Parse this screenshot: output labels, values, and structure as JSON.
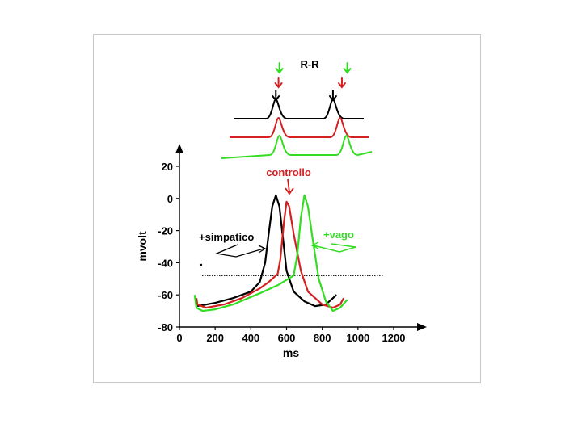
{
  "chart_data": {
    "type": "line",
    "xlabel": "ms",
    "ylabel": "mvolt",
    "xlim": [
      0,
      1200
    ],
    "ylim": [
      -80,
      20
    ],
    "x_ticks": [
      "0",
      "200",
      "400",
      "600",
      "800",
      "1000",
      "1200"
    ],
    "y_ticks": [
      "20",
      "0",
      "-20",
      "-40",
      "-60",
      "-80"
    ],
    "threshold_mv": -48,
    "annotations": {
      "rr": "R-R",
      "control": "controllo",
      "sympathetic": "+simpatico",
      "vagal": "+vago"
    },
    "series": [
      {
        "label": "+simpatico",
        "color": "#000000",
        "points": [
          [
            100,
            -67
          ],
          [
            200,
            -65
          ],
          [
            300,
            -62
          ],
          [
            400,
            -58
          ],
          [
            450,
            -52
          ],
          [
            480,
            -40
          ],
          [
            500,
            -22
          ],
          [
            520,
            -5
          ],
          [
            540,
            2
          ],
          [
            560,
            -5
          ],
          [
            580,
            -25
          ],
          [
            600,
            -45
          ],
          [
            640,
            -58
          ],
          [
            700,
            -64
          ],
          [
            760,
            -67
          ],
          [
            820,
            -66
          ],
          [
            860,
            -62
          ],
          [
            880,
            -60
          ]
        ]
      },
      {
        "label": "controllo",
        "color": "#d42020",
        "points": [
          [
            95,
            -62
          ],
          [
            100,
            -66
          ],
          [
            150,
            -68
          ],
          [
            250,
            -66
          ],
          [
            350,
            -62
          ],
          [
            450,
            -56
          ],
          [
            500,
            -52
          ],
          [
            550,
            -47
          ],
          [
            565,
            -38
          ],
          [
            585,
            -15
          ],
          [
            600,
            -2
          ],
          [
            615,
            -5
          ],
          [
            640,
            -22
          ],
          [
            680,
            -45
          ],
          [
            720,
            -58
          ],
          [
            800,
            -66
          ],
          [
            860,
            -68
          ],
          [
            900,
            -66
          ],
          [
            920,
            -62
          ]
        ]
      },
      {
        "label": "+vago",
        "color": "#33dd22",
        "points": [
          [
            85,
            -60
          ],
          [
            95,
            -68
          ],
          [
            130,
            -70
          ],
          [
            200,
            -69
          ],
          [
            300,
            -66
          ],
          [
            450,
            -59
          ],
          [
            550,
            -54
          ],
          [
            640,
            -48
          ],
          [
            660,
            -35
          ],
          [
            680,
            -12
          ],
          [
            700,
            2
          ],
          [
            720,
            -5
          ],
          [
            750,
            -28
          ],
          [
            780,
            -50
          ],
          [
            820,
            -64
          ],
          [
            860,
            -70
          ],
          [
            900,
            -68
          ],
          [
            940,
            -63
          ]
        ]
      }
    ]
  },
  "ecg_traces": [
    {
      "name": "ecg-black",
      "color": "#000000",
      "peaks_ms": [
        540,
        860
      ]
    },
    {
      "name": "ecg-red",
      "color": "#d42020",
      "peaks_ms": [
        555,
        900
      ]
    },
    {
      "name": "ecg-green",
      "color": "#33dd22",
      "peaks_ms": [
        560,
        935
      ]
    }
  ],
  "rr_arrows": [
    {
      "name": "arrow-green-left",
      "color": "#33dd22",
      "ms": 560,
      "row": 0
    },
    {
      "name": "arrow-red-left",
      "color": "#d42020",
      "ms": 555,
      "row": 1
    },
    {
      "name": "arrow-black-left",
      "color": "#000000",
      "ms": 540,
      "row": 2
    },
    {
      "name": "arrow-green-right",
      "color": "#33dd22",
      "ms": 940,
      "row": 0
    },
    {
      "name": "arrow-red-right",
      "color": "#d42020",
      "ms": 910,
      "row": 1
    },
    {
      "name": "arrow-black-right",
      "color": "#000000",
      "ms": 860,
      "row": 2
    }
  ]
}
